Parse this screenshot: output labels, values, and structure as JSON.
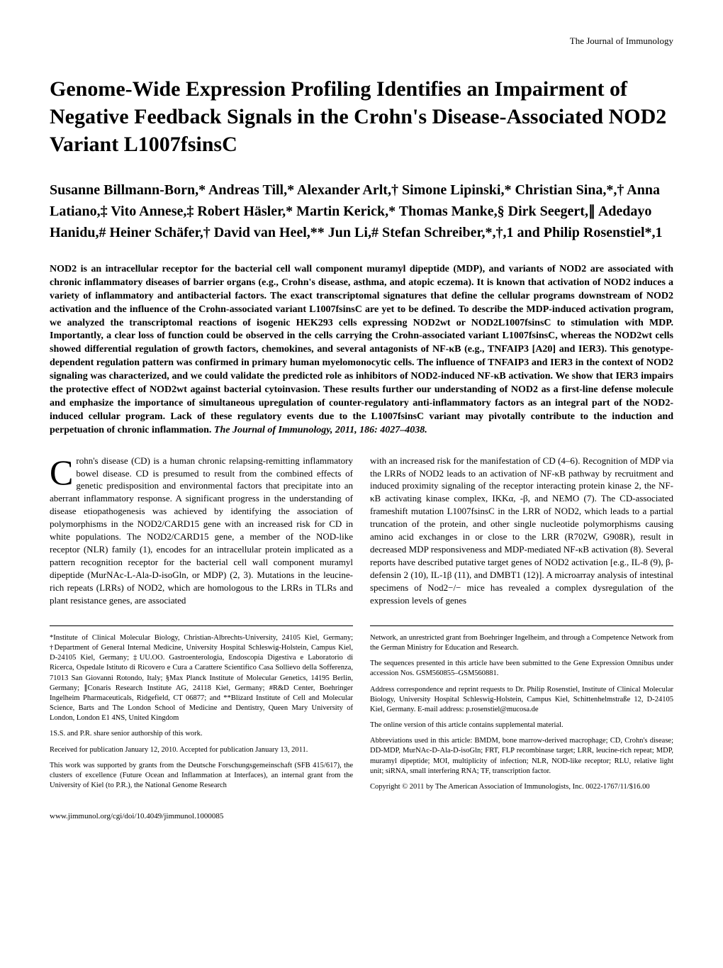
{
  "running_head": "The Journal of Immunology",
  "title": "Genome-Wide Expression Profiling Identifies an Impairment of Negative Feedback Signals in the Crohn's Disease-Associated NOD2 Variant L1007fsinsC",
  "authors": "Susanne Billmann-Born,* Andreas Till,* Alexander Arlt,† Simone Lipinski,* Christian Sina,*,† Anna Latiano,‡ Vito Annese,‡ Robert Häsler,* Martin Kerick,* Thomas Manke,§ Dirk Seegert,∥ Adedayo Hanidu,# Heiner Schäfer,† David van Heel,** Jun Li,# Stefan Schreiber,*,†,1 and Philip Rosenstiel*,1",
  "abstract": "NOD2 is an intracellular receptor for the bacterial cell wall component muramyl dipeptide (MDP), and variants of NOD2 are associated with chronic inflammatory diseases of barrier organs (e.g., Crohn's disease, asthma, and atopic eczema). It is known that activation of NOD2 induces a variety of inflammatory and antibacterial factors. The exact transcriptomal signatures that define the cellular programs downstream of NOD2 activation and the influence of the Crohn-associated variant L1007fsinsC are yet to be defined. To describe the MDP-induced activation program, we analyzed the transcriptomal reactions of isogenic HEK293 cells expressing NOD2wt or NOD2L1007fsinsC to stimulation with MDP. Importantly, a clear loss of function could be observed in the cells carrying the Crohn-associated variant L1007fsinsC, whereas the NOD2wt cells showed differential regulation of growth factors, chemokines, and several antagonists of NF-κB (e.g., TNFAIP3 [A20] and IER3). This genotype-dependent regulation pattern was confirmed in primary human myelomonocytic cells. The influence of TNFAIP3 and IER3 in the context of NOD2 signaling was characterized, and we could validate the predicted role as inhibitors of NOD2-induced NF-κB activation. We show that IER3 impairs the protective effect of NOD2wt against bacterial cytoinvasion. These results further our understanding of NOD2 as a first-line defense molecule and emphasize the importance of simultaneous upregulation of counter-regulatory anti-inflammatory factors as an integral part of the NOD2-induced cellular program. Lack of these regulatory events due to the L1007fsinsC variant may pivotally contribute to the induction and perpetuation of chronic inflammation.",
  "abstract_citation": "The Journal of Immunology, 2011, 186: 4027–4038.",
  "body": {
    "dropcap": "C",
    "col1": "rohn's disease (CD) is a human chronic relapsing-remitting inflammatory bowel disease. CD is presumed to result from the combined effects of genetic predisposition and environmental factors that precipitate into an aberrant inflammatory response. A significant progress in the understanding of disease etiopathogenesis was achieved by identifying the association of polymorphisms in the NOD2/CARD15 gene with an increased risk for CD in white populations. The NOD2/CARD15 gene, a member of the NOD-like receptor (NLR) family (1), encodes for an intracellular protein implicated as a pattern recognition receptor for the bacterial cell wall component muramyl dipeptide (MurNAc-L-Ala-D-isoGln, or MDP) (2, 3). Mutations in the leucine-rich repeats (LRRs) of NOD2, which are homologous to the LRRs in TLRs and plant resistance genes, are associated",
    "col2": "with an increased risk for the manifestation of CD (4–6). Recognition of MDP via the LRRs of NOD2 leads to an activation of NF-κB pathway by recruitment and induced proximity signaling of the receptor interacting protein kinase 2, the NF-κB activating kinase complex, IKKα, -β, and NEMO (7). The CD-associated frameshift mutation L1007fsinsC in the LRR of NOD2, which leads to a partial truncation of the protein, and other single nucleotide polymorphisms causing amino acid exchanges in or close to the LRR (R702W, G908R), result in decreased MDP responsiveness and MDP-mediated NF-κB activation (8). Several reports have described putative target genes of NOD2 activation [e.g., IL-8 (9), β-defensin 2 (10), IL-1β (11), and DMBT1 (12)]. A microarray analysis of intestinal specimens of Nod2−/− mice has revealed a complex dysregulation of the expression levels of genes"
  },
  "footer": {
    "left1": "*Institute of Clinical Molecular Biology, Christian-Albrechts-University, 24105 Kiel, Germany; †Department of General Internal Medicine, University Hospital Schleswig-Holstein, Campus Kiel, D-24105 Kiel, Germany; ‡UU.OO. Gastroenterologia, Endoscopia Digestiva e Laboratorio di Ricerca, Ospedale Istituto di Ricovero e Cura a Carattere Scientifico Casa Sollievo della Sofferenza, 71013 San Giovanni Rotondo, Italy; §Max Planck Institute of Molecular Genetics, 14195 Berlin, Germany; ∥Conaris Research Institute AG, 24118 Kiel, Germany; #R&D Center, Boehringer Ingelheim Pharmaceuticals, Ridgefield, CT 06877; and **Blizard Institute of Cell and Molecular Science, Barts and The London School of Medicine and Dentistry, Queen Mary University of London, London E1 4NS, United Kingdom",
    "left2": "1S.S. and P.R. share senior authorship of this work.",
    "left3": "Received for publication January 12, 2010. Accepted for publication January 13, 2011.",
    "left4": "This work was supported by grants from the Deutsche Forschungsgemeinschaft (SFB 415/617), the clusters of excellence (Future Ocean and Inflammation at Interfaces), an internal grant from the University of Kiel (to P.R.), the National Genome Research",
    "right1": "Network, an unrestricted grant from Boehringer Ingelheim, and through a Competence Network from the German Ministry for Education and Research.",
    "right2": "The sequences presented in this article have been submitted to the Gene Expression Omnibus under accession Nos. GSM560855–GSM560881.",
    "right3": "Address correspondence and reprint requests to Dr. Philip Rosenstiel, Institute of Clinical Molecular Biology, University Hospital Schleswig-Holstein, Campus Kiel, Schittenhelmstraße 12, D-24105 Kiel, Germany. E-mail address: p.rosenstiel@mucosa.de",
    "right4": "The online version of this article contains supplemental material.",
    "right5": "Abbreviations used in this article: BMDM, bone marrow-derived macrophage; CD, Crohn's disease; DD-MDP, MurNAc-D-Ala-D-isoGln; FRT, FLP recombinase target; LRR, leucine-rich repeat; MDP, muramyl dipeptide; MOI, multiplicity of infection; NLR, NOD-like receptor; RLU, relative light unit; siRNA, small interfering RNA; TF, transcription factor.",
    "right6": "Copyright © 2011 by The American Association of Immunologists, Inc. 0022-1767/11/$16.00"
  },
  "page_footer": "www.jimmunol.org/cgi/doi/10.4049/jimmunol.1000085"
}
